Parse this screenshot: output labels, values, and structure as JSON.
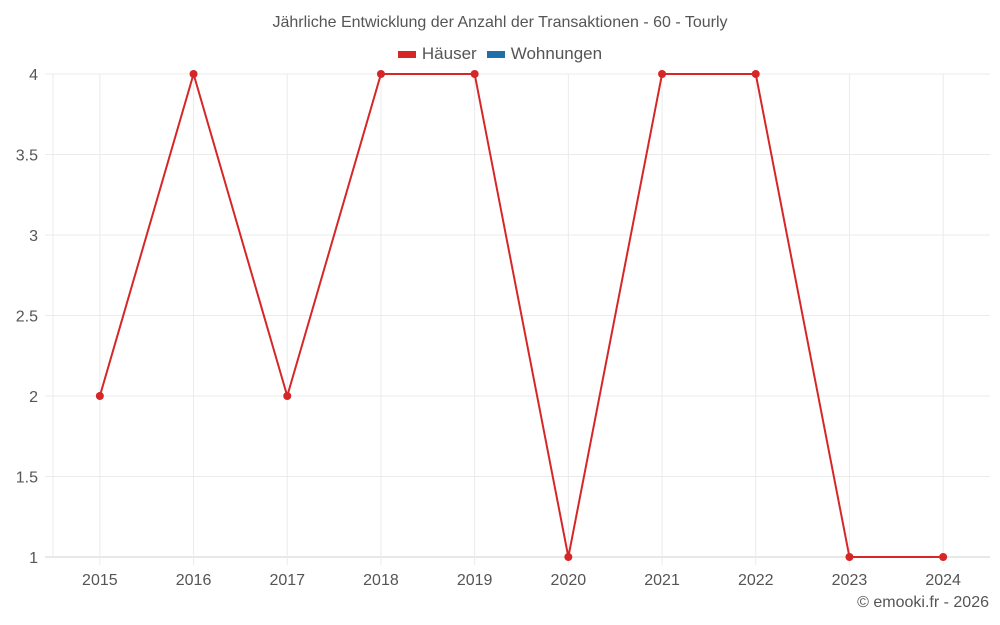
{
  "chart_data": {
    "type": "line",
    "title": "Jährliche Entwicklung der Anzahl der Transaktionen - 60 - Tourly",
    "xlabel": "",
    "ylabel": "",
    "categories": [
      "2015",
      "2016",
      "2017",
      "2018",
      "2019",
      "2020",
      "2021",
      "2022",
      "2023",
      "2024"
    ],
    "series": [
      {
        "name": "Häuser",
        "color": "#d62728",
        "values": [
          2,
          4,
          2,
          4,
          4,
          1,
          4,
          4,
          1,
          1
        ]
      },
      {
        "name": "Wohnungen",
        "color": "#1f6fa8",
        "values": []
      }
    ],
    "ylim": [
      1,
      4
    ],
    "yticks": [
      "1",
      "1.5",
      "2",
      "2.5",
      "3",
      "3.5",
      "4"
    ],
    "grid": true,
    "legend_position": "top"
  },
  "header": {
    "title": "Jährliche Entwicklung der Anzahl der Transaktionen - 60 - Tourly"
  },
  "legend": {
    "items": [
      {
        "label": "Häuser",
        "color": "#d62728"
      },
      {
        "label": "Wohnungen",
        "color": "#1f6fa8"
      }
    ]
  },
  "footer": {
    "credit": "© emooki.fr - 2026"
  }
}
